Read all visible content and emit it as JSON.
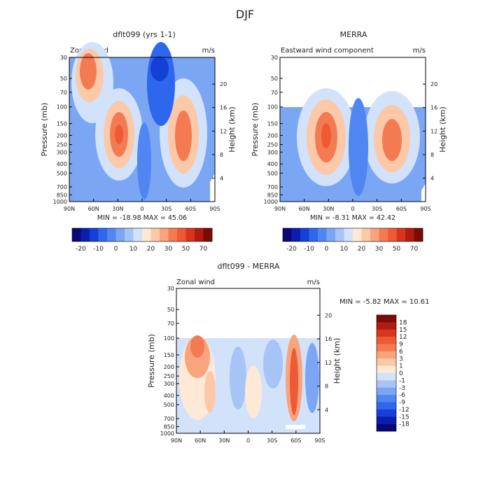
{
  "page_title": "DJF",
  "panels": {
    "model": {
      "title": "dflt099 (yrs 1-1)",
      "left_label": "Zonal wind",
      "right_label": "m/s",
      "stats": "MIN = -18.98  MAX = 45.06"
    },
    "obs": {
      "title": "MERRA",
      "left_label": "Eastward wind component",
      "right_label": "m/s",
      "stats": "MIN = -8.31  MAX = 42.42"
    },
    "diff": {
      "title": "dflt099 - MERRA",
      "left_label": "Zonal wind",
      "right_label": "m/s",
      "stats": "MIN =  -5.82  MAX =  10.61"
    }
  },
  "axes": {
    "ylabel": "Pressure (mb)",
    "y2label": "Height (km)",
    "pressure_ticks": [
      "30",
      "50",
      "70",
      "100",
      "150",
      "200",
      "250",
      "300",
      "400",
      "500",
      "700",
      "850",
      "1000"
    ],
    "height_ticks": [
      "4",
      "8",
      "12",
      "16",
      "20"
    ],
    "lat_ticks": [
      "90N",
      "60N",
      "30N",
      "0",
      "30S",
      "60S",
      "90S"
    ]
  },
  "colorbars": {
    "top": {
      "labels": [
        "-20",
        "-10",
        "0",
        "10",
        "20",
        "30",
        "50",
        "70"
      ],
      "colors": [
        "#08087a",
        "#0a1fb0",
        "#1540d8",
        "#2e66ee",
        "#4f86f2",
        "#7aa6f4",
        "#a6c4f6",
        "#d2e2fa",
        "#fde9d6",
        "#fbc8a8",
        "#f8a47c",
        "#f47a52",
        "#ee5a34",
        "#d8361c",
        "#b01c10",
        "#7c0a06"
      ]
    },
    "diff": {
      "labels": [
        "18",
        "15",
        "12",
        "9",
        "6",
        "3",
        "1",
        "0",
        "-1",
        "-3",
        "-6",
        "-9",
        "-12",
        "-15",
        "-18"
      ],
      "colors": [
        "#7c0a06",
        "#b01c10",
        "#d8361c",
        "#ee5a34",
        "#f47a52",
        "#f8a47c",
        "#fbc8a8",
        "#fde9d6",
        "#d2e2fa",
        "#a6c4f6",
        "#7aa6f4",
        "#4f86f2",
        "#2e66ee",
        "#1540d8",
        "#0a1fb0",
        "#08087a"
      ]
    }
  },
  "chart_data": [
    {
      "type": "heatmap",
      "title": "dflt099 (yrs 1-1)",
      "subtitle": "Zonal wind",
      "units": "m/s",
      "x": [
        "90N",
        "60N",
        "30N",
        "0",
        "30S",
        "60S",
        "90S"
      ],
      "y_pressure_mb": [
        30,
        50,
        70,
        100,
        150,
        200,
        250,
        300,
        400,
        500,
        700,
        850,
        1000
      ],
      "min": -18.98,
      "max": 45.06,
      "xlabel": "",
      "ylabel": "Pressure (mb)",
      "y2label": "Height (km)"
    },
    {
      "type": "heatmap",
      "title": "MERRA",
      "subtitle": "Eastward wind component",
      "units": "m/s",
      "x": [
        "90N",
        "60N",
        "30N",
        "0",
        "30S",
        "60S",
        "90S"
      ],
      "y_pressure_mb": [
        30,
        50,
        70,
        100,
        150,
        200,
        250,
        300,
        400,
        500,
        700,
        850,
        1000
      ],
      "data_top_pressure_mb": 100,
      "min": -8.31,
      "max": 42.42,
      "xlabel": "",
      "ylabel": "Pressure (mb)",
      "y2label": "Height (km)"
    },
    {
      "type": "heatmap",
      "title": "dflt099 - MERRA",
      "subtitle": "Zonal wind",
      "units": "m/s",
      "x": [
        "90N",
        "60N",
        "30N",
        "0",
        "30S",
        "60S",
        "90S"
      ],
      "y_pressure_mb": [
        30,
        50,
        70,
        100,
        150,
        200,
        250,
        300,
        400,
        500,
        700,
        850,
        1000
      ],
      "data_top_pressure_mb": 100,
      "min": -5.82,
      "max": 10.61,
      "xlabel": "",
      "ylabel": "Pressure (mb)",
      "y2label": "Height (km)"
    }
  ]
}
